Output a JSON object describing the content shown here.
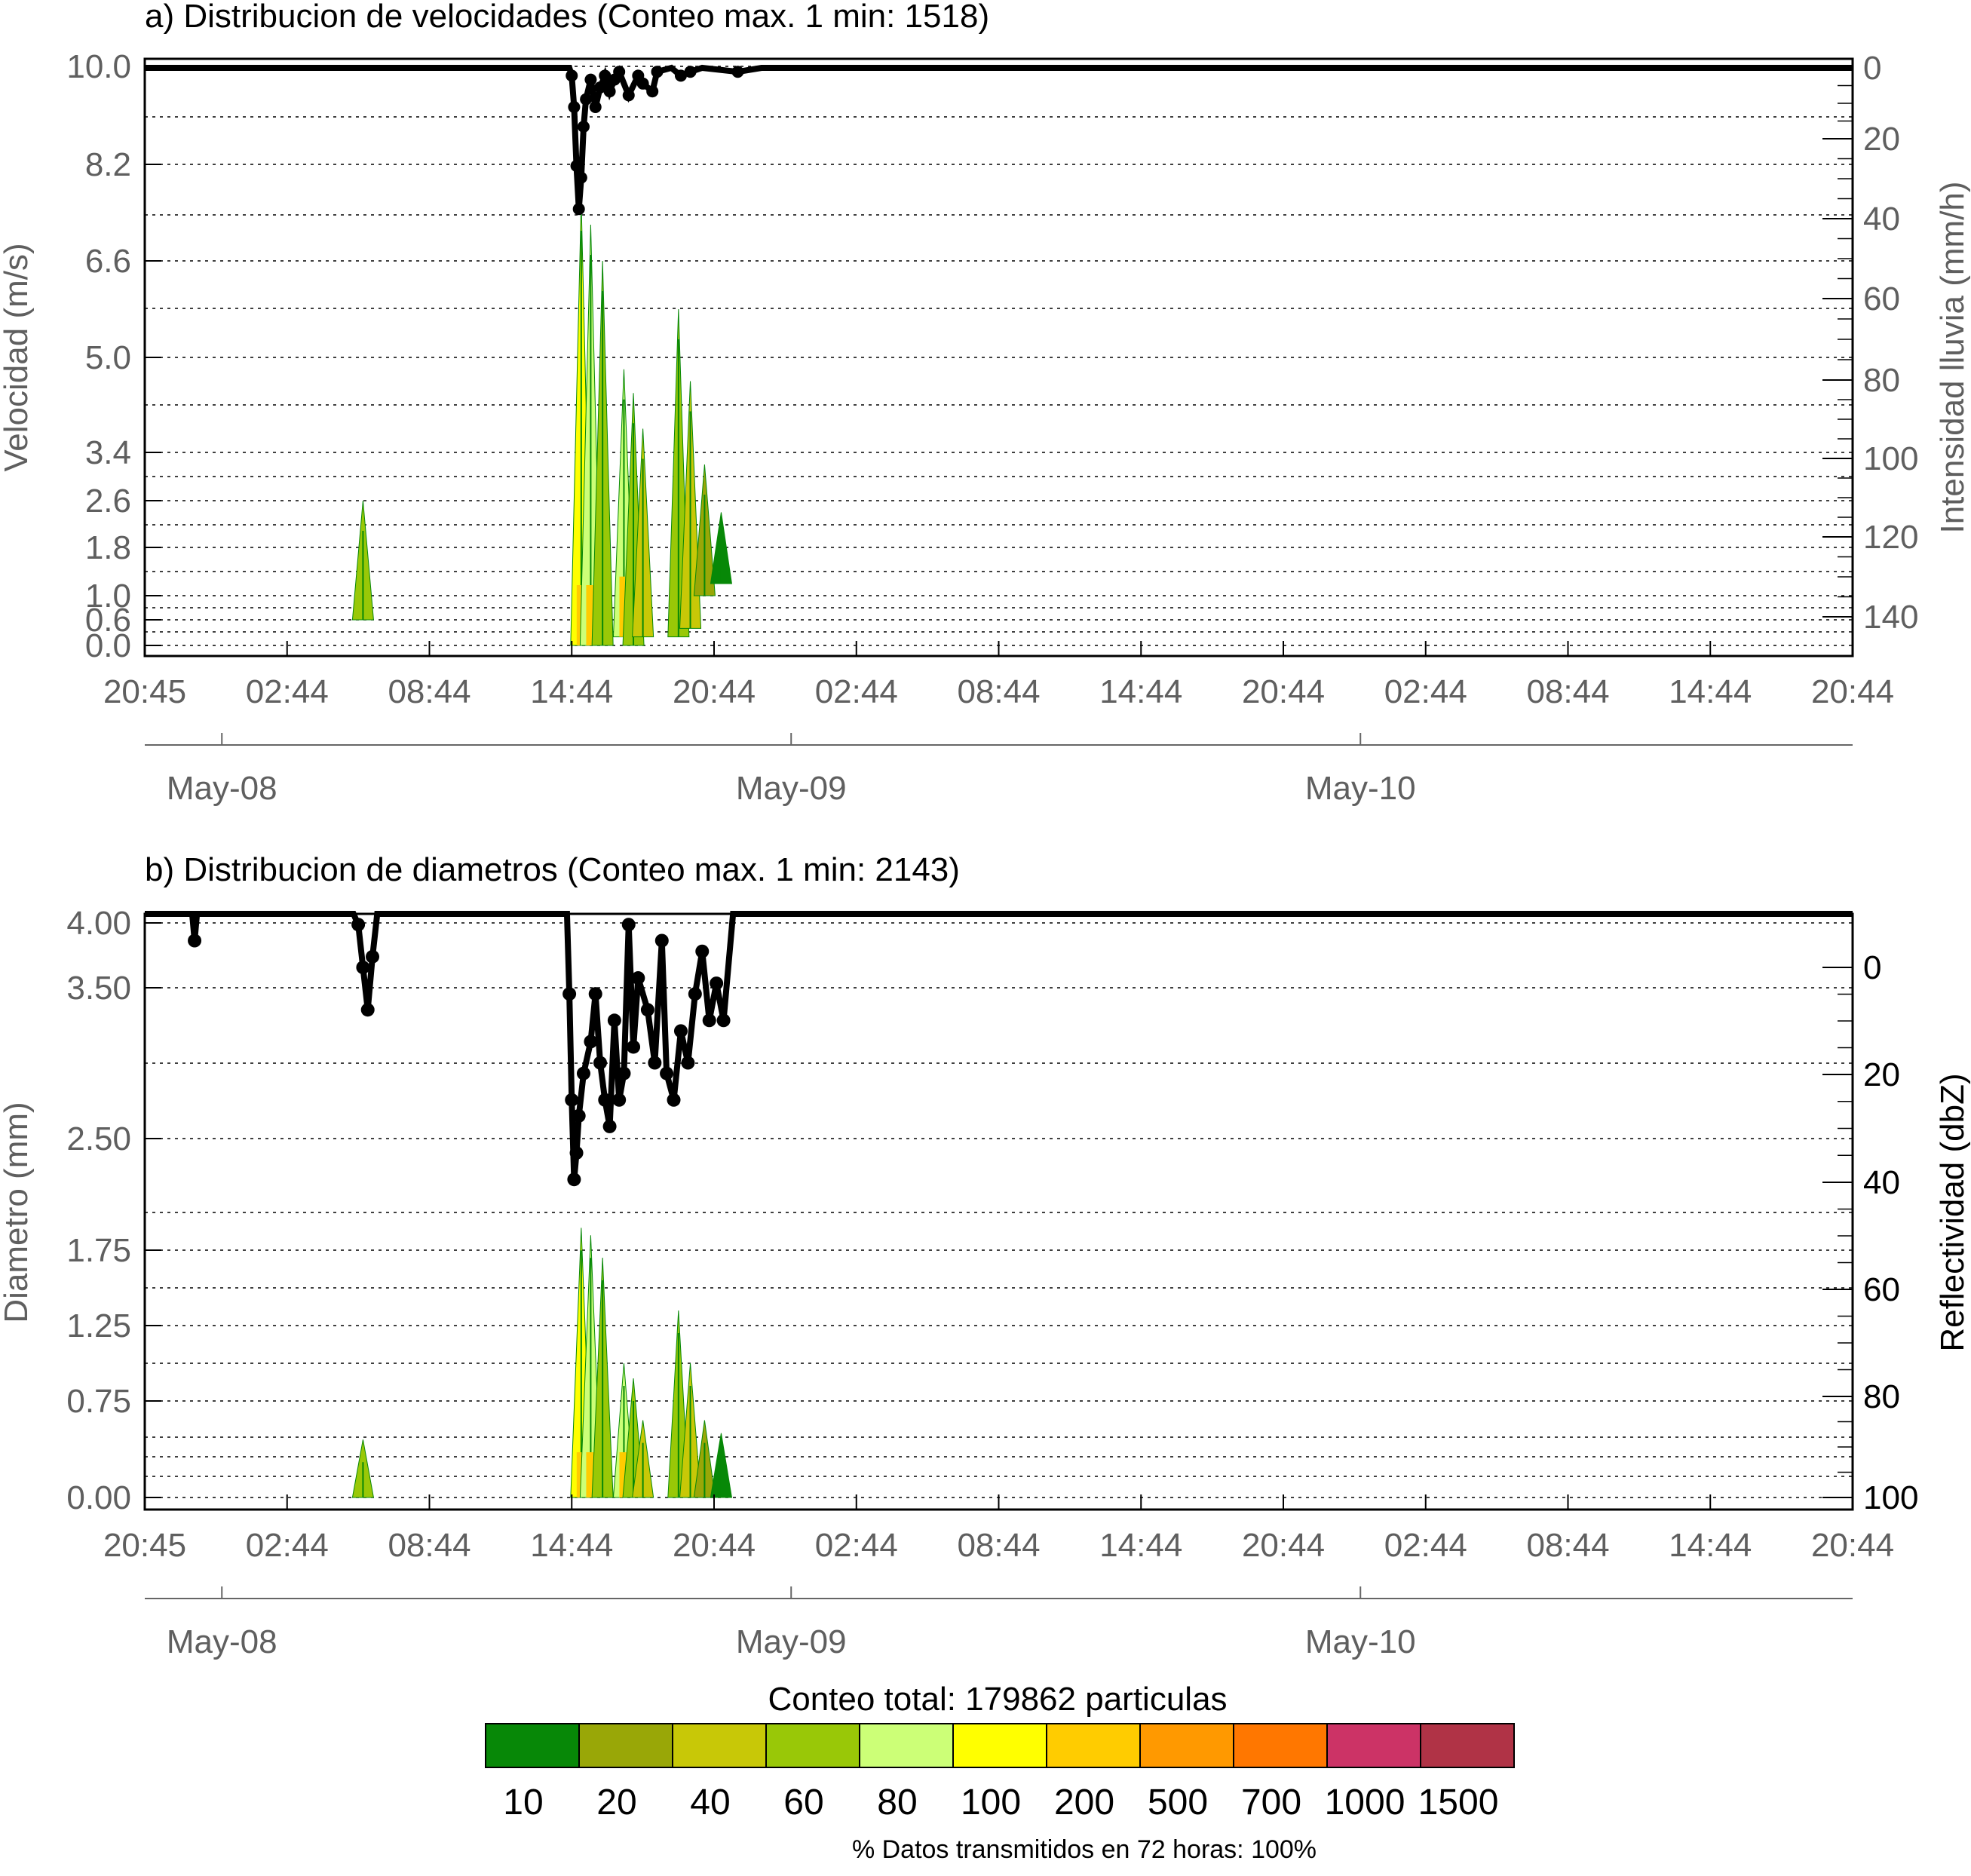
{
  "chart_data": [
    {
      "type": "heatmap",
      "title": "a) Distribucion de velocidades (Conteo max. 1 min: 1518)",
      "ylabel": "Velocidad (m/s)",
      "y2label": "Intensidad lluvia (mm/h)",
      "ylim": [
        0.0,
        10.0
      ],
      "yticks": [
        "10.0",
        "8.2",
        "6.6",
        "5.0",
        "3.4",
        "2.6",
        "1.8",
        "1.0",
        "0.6",
        "0.0"
      ],
      "y2lim": [
        0,
        150
      ],
      "y2ticks": [
        "0",
        "20",
        "40",
        "60",
        "80",
        "100",
        "120",
        "140"
      ],
      "xlim_hours": [
        0,
        72
      ],
      "xticks": [
        "20:45",
        "02:44",
        "08:44",
        "14:44",
        "20:44",
        "02:44",
        "08:44",
        "14:44",
        "20:44",
        "02:44",
        "08:44",
        "14:44",
        "20:44"
      ],
      "dates": [
        "May-08",
        "May-09",
        "May-10"
      ],
      "grid": "dotted horizontal",
      "rain_rate_series": [
        [
          0,
          0
        ],
        [
          17.9,
          0
        ],
        [
          18.0,
          2
        ],
        [
          18.1,
          10
        ],
        [
          18.2,
          25
        ],
        [
          18.3,
          36
        ],
        [
          18.4,
          28
        ],
        [
          18.5,
          15
        ],
        [
          18.6,
          8
        ],
        [
          18.8,
          3
        ],
        [
          19.0,
          10
        ],
        [
          19.2,
          5
        ],
        [
          19.4,
          2
        ],
        [
          19.6,
          6
        ],
        [
          19.8,
          3
        ],
        [
          20.0,
          1
        ],
        [
          20.4,
          7
        ],
        [
          20.8,
          2
        ],
        [
          21.0,
          4
        ],
        [
          21.4,
          6
        ],
        [
          21.6,
          1
        ],
        [
          22.2,
          0
        ],
        [
          22.6,
          2
        ],
        [
          23.0,
          1
        ],
        [
          23.5,
          0
        ],
        [
          25.0,
          1
        ],
        [
          26,
          0
        ],
        [
          72,
          0
        ]
      ],
      "distribution": [
        {
          "t": 9.2,
          "y0": 0.6,
          "y1": 2.6,
          "level": 60
        },
        {
          "t": 18.4,
          "y0": 0.0,
          "y1": 7.6,
          "level": 100
        },
        {
          "t": 18.8,
          "y0": 0.0,
          "y1": 7.2,
          "level": 80
        },
        {
          "t": 19.3,
          "y0": 0.0,
          "y1": 6.6,
          "level": 60
        },
        {
          "t": 20.2,
          "y0": 0.2,
          "y1": 4.8,
          "level": 80
        },
        {
          "t": 20.6,
          "y0": 0.0,
          "y1": 4.4,
          "level": 60
        },
        {
          "t": 21.0,
          "y0": 0.2,
          "y1": 3.8,
          "level": 40
        },
        {
          "t": 22.5,
          "y0": 0.2,
          "y1": 5.8,
          "level": 60
        },
        {
          "t": 23.0,
          "y0": 0.4,
          "y1": 4.6,
          "level": 40
        },
        {
          "t": 23.6,
          "y0": 1.0,
          "y1": 3.2,
          "level": 20
        },
        {
          "t": 24.3,
          "y0": 1.2,
          "y1": 2.4,
          "level": 10
        }
      ]
    },
    {
      "type": "heatmap",
      "title": "b) Distribucion de diametros (Conteo max. 1 min: 2143)",
      "ylabel": "Diametro (mm)",
      "y2label": "Reflectividad (dbZ)",
      "ylim": [
        0.0,
        4.0
      ],
      "yticks": [
        "4.00",
        "3.50",
        "2.50",
        "1.75",
        "1.25",
        "0.75",
        "0.00"
      ],
      "y2lim": [
        -10,
        100
      ],
      "y2ticks": [
        "0",
        "20",
        "40",
        "60",
        "80",
        "100"
      ],
      "xlim_hours": [
        0,
        72
      ],
      "xticks": [
        "20:45",
        "02:44",
        "08:44",
        "14:44",
        "20:44",
        "02:44",
        "08:44",
        "14:44",
        "20:44",
        "02:44",
        "08:44",
        "14:44",
        "20:44"
      ],
      "dates": [
        "May-08",
        "May-09",
        "May-10"
      ],
      "grid": "dotted horizontal",
      "reflectivity_series": [
        [
          0,
          -10
        ],
        [
          2.0,
          -10
        ],
        [
          2.1,
          -5
        ],
        [
          2.2,
          -10
        ],
        [
          8.8,
          -10
        ],
        [
          9.0,
          -8
        ],
        [
          9.2,
          0
        ],
        [
          9.4,
          8
        ],
        [
          9.6,
          -2
        ],
        [
          9.8,
          -10
        ],
        [
          17.8,
          -10
        ],
        [
          17.9,
          5
        ],
        [
          18.0,
          25
        ],
        [
          18.1,
          40
        ],
        [
          18.2,
          35
        ],
        [
          18.3,
          28
        ],
        [
          18.5,
          20
        ],
        [
          18.8,
          14
        ],
        [
          19.0,
          5
        ],
        [
          19.2,
          18
        ],
        [
          19.4,
          25
        ],
        [
          19.6,
          30
        ],
        [
          19.8,
          10
        ],
        [
          20.0,
          25
        ],
        [
          20.2,
          20
        ],
        [
          20.4,
          -8
        ],
        [
          20.6,
          15
        ],
        [
          20.8,
          2
        ],
        [
          21.2,
          8
        ],
        [
          21.5,
          18
        ],
        [
          21.8,
          -5
        ],
        [
          22.0,
          20
        ],
        [
          22.3,
          25
        ],
        [
          22.6,
          12
        ],
        [
          22.9,
          18
        ],
        [
          23.2,
          5
        ],
        [
          23.5,
          -3
        ],
        [
          23.8,
          10
        ],
        [
          24.1,
          3
        ],
        [
          24.4,
          10
        ],
        [
          24.8,
          -10
        ],
        [
          72,
          -10
        ]
      ],
      "distribution": [
        {
          "t": 9.2,
          "y0": 0.0,
          "y1": 0.45,
          "level": 60
        },
        {
          "t": 18.4,
          "y0": 0.0,
          "y1": 1.9,
          "level": 100
        },
        {
          "t": 18.8,
          "y0": 0.0,
          "y1": 1.85,
          "level": 80
        },
        {
          "t": 19.3,
          "y0": 0.0,
          "y1": 1.7,
          "level": 60
        },
        {
          "t": 20.2,
          "y0": 0.0,
          "y1": 1.0,
          "level": 80
        },
        {
          "t": 20.6,
          "y0": 0.0,
          "y1": 0.9,
          "level": 60
        },
        {
          "t": 21.0,
          "y0": 0.0,
          "y1": 0.6,
          "level": 40
        },
        {
          "t": 22.5,
          "y0": 0.0,
          "y1": 1.35,
          "level": 60
        },
        {
          "t": 23.0,
          "y0": 0.0,
          "y1": 1.0,
          "level": 40
        },
        {
          "t": 23.6,
          "y0": 0.0,
          "y1": 0.6,
          "level": 20
        },
        {
          "t": 24.3,
          "y0": 0.0,
          "y1": 0.5,
          "level": 10
        }
      ]
    }
  ],
  "legend": {
    "title": "Conteo total: 179862 particulas",
    "levels": [
      "10",
      "20",
      "40",
      "60",
      "80",
      "100",
      "200",
      "500",
      "700",
      "1000",
      "1500"
    ],
    "colors": [
      "#078807",
      "#99a707",
      "#c8c807",
      "#99c807",
      "#ccff77",
      "#ffff00",
      "#ffcc00",
      "#ff9900",
      "#ff7700",
      "#cc3366",
      "#b03346"
    ]
  },
  "footer": "% Datos transmitidos en 72 horas: 100%"
}
